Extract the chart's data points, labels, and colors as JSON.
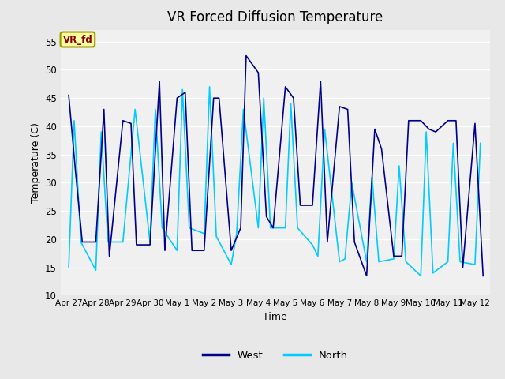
{
  "title": "VR Forced Diffusion Temperature",
  "xlabel": "Time",
  "ylabel": "Temperature (C)",
  "ylim": [
    10,
    57
  ],
  "yticks": [
    10,
    15,
    20,
    25,
    30,
    35,
    40,
    45,
    50,
    55
  ],
  "bg_color": "#e8e8e8",
  "plot_bg_color": "#f0f0f0",
  "west_color": "#00008B",
  "north_color": "#00CCFF",
  "annotation_text": "VR_fd",
  "annotation_bg": "#FFFFA0",
  "annotation_border": "#999900",
  "annotation_text_color": "#880000",
  "x_tick_labels": [
    "Apr 27",
    "Apr 28",
    "Apr 29",
    "Apr 30",
    "May 1",
    "May 2",
    "May 3",
    "May 4",
    "May 5",
    "May 6",
    "May 7",
    "May 8",
    "May 9",
    "May 10",
    "May 11",
    "May 12"
  ],
  "west_x": [
    0.0,
    0.25,
    0.5,
    1.0,
    1.3,
    1.5,
    2.0,
    2.3,
    2.5,
    3.0,
    3.35,
    3.55,
    4.0,
    4.3,
    4.55,
    5.0,
    5.35,
    5.55,
    6.0,
    6.35,
    6.55,
    7.0,
    7.3,
    7.55,
    8.0,
    8.3,
    8.55,
    9.0,
    9.3,
    9.55,
    10.0,
    10.3,
    10.55,
    11.0,
    11.3,
    11.55,
    12.0,
    12.3,
    12.55,
    13.0,
    13.3,
    13.55,
    14.0,
    14.3,
    14.55,
    15.0,
    15.3
  ],
  "west_y": [
    45.5,
    32,
    19.5,
    19.5,
    43,
    17,
    41,
    40.5,
    19,
    19,
    48,
    18,
    45,
    46,
    18,
    18,
    45,
    45,
    18,
    22,
    52.5,
    49.5,
    24,
    22,
    47,
    45,
    26,
    26,
    48,
    19.5,
    43.5,
    43,
    19.5,
    13.5,
    39.5,
    36,
    17,
    17,
    41,
    41,
    39.5,
    39,
    41,
    41,
    15,
    40.5,
    13.5
  ],
  "north_x": [
    0.0,
    0.2,
    0.45,
    1.0,
    1.2,
    1.45,
    2.0,
    2.45,
    3.0,
    3.2,
    3.45,
    4.0,
    4.2,
    4.45,
    5.0,
    5.2,
    5.45,
    6.0,
    6.2,
    6.45,
    7.0,
    7.2,
    7.45,
    8.0,
    8.2,
    8.45,
    9.0,
    9.2,
    9.45,
    10.0,
    10.2,
    10.45,
    11.0,
    11.2,
    11.45,
    12.0,
    12.2,
    12.45,
    13.0,
    13.2,
    13.45,
    14.0,
    14.2,
    14.45,
    15.0,
    15.2
  ],
  "north_y": [
    15,
    41,
    19.5,
    14.5,
    39,
    19.5,
    19.5,
    43,
    19.5,
    43,
    22,
    18,
    46.5,
    22,
    21,
    47,
    20.5,
    15.5,
    21,
    43,
    22,
    45,
    22,
    22,
    44,
    22,
    19,
    17,
    39.5,
    16,
    16.5,
    30,
    16,
    31,
    16,
    16.5,
    33,
    16,
    13.5,
    39,
    14,
    16,
    37,
    16,
    15.5,
    37
  ]
}
